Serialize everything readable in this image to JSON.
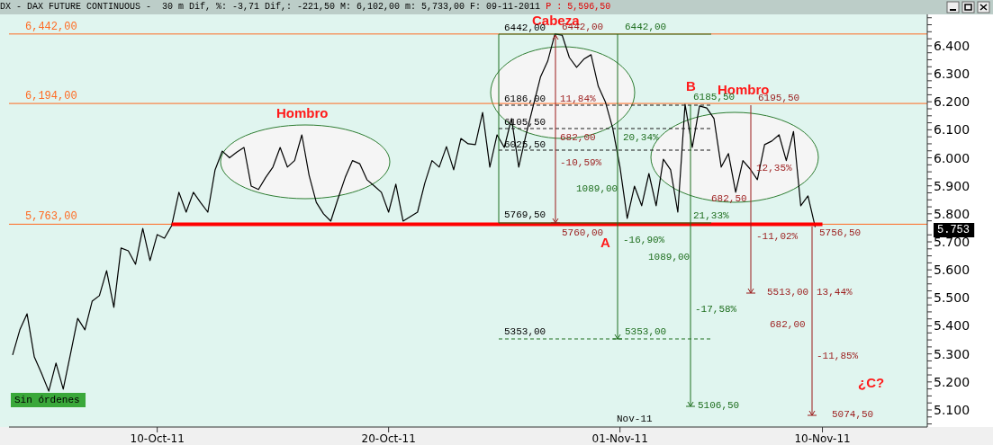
{
  "chart_data": {
    "type": "line",
    "title": "DX - DAX FUTURE CONTINUOUS -  30 m Dif, %: -3,71 Dif,: -221,50 M: 6,102,00 m: 5,733,00 F: 09-11-2011",
    "subtitle": "P : 5,596,50",
    "categories": [
      null,
      null,
      null,
      null,
      null,
      null,
      null,
      null,
      null,
      null,
      null,
      null,
      null,
      null,
      null,
      null,
      null,
      null,
      null,
      null,
      "10-Oct-11",
      null,
      null,
      null,
      null,
      null,
      null,
      null,
      null,
      null,
      null,
      null,
      null,
      null,
      null,
      null,
      null,
      null,
      null,
      null,
      null,
      null,
      null,
      null,
      null,
      null,
      null,
      null,
      null,
      null,
      null,
      null,
      "20-Oct-11",
      null,
      null,
      null,
      null,
      null,
      null,
      null,
      null,
      null,
      null,
      null,
      null,
      null,
      null,
      null,
      null,
      null,
      null,
      null,
      null,
      null,
      null,
      null,
      null,
      null,
      null,
      null,
      null,
      null,
      null,
      null,
      "01-Nov-11",
      null,
      null,
      null,
      null,
      null,
      null,
      null,
      null,
      null,
      null,
      null,
      null,
      null,
      null,
      null,
      null,
      null,
      null,
      null,
      null,
      null,
      null,
      null,
      null,
      null,
      null,
      null,
      "10-Nov-11",
      null,
      null,
      null,
      null,
      null,
      null,
      null,
      null,
      null,
      null,
      null,
      null,
      null,
      null
    ],
    "series": [
      {
        "color": "#000000",
        "values": [
          5296,
          5386,
          5443,
          5289,
          5231,
          5167,
          5267,
          5174,
          5299,
          5427,
          5386,
          5488,
          5508,
          5597,
          5466,
          5678,
          5668,
          5620,
          5748,
          5633,
          5726,
          5713,
          5758,
          5877,
          5806,
          5877,
          5840,
          5806,
          5957,
          6024,
          6000,
          6020,
          6037,
          5899,
          5887,
          5930,
          5967,
          6037,
          5967,
          5990,
          6082,
          5938,
          5841,
          5800,
          5774,
          5854,
          5930,
          5990,
          5979,
          5922,
          5900,
          5877,
          5806,
          5906,
          5774,
          5790,
          5806,
          5909,
          5990,
          5967,
          6040,
          5957,
          6069,
          6050,
          6047,
          6162,
          5967,
          6082,
          6037,
          6140,
          5967,
          6082,
          6185,
          6288,
          6345,
          6442,
          6438,
          6358,
          6323,
          6352,
          6368,
          6255,
          6198,
          6105,
          5967,
          5784,
          5899,
          5829,
          5944,
          5829,
          5995,
          5957,
          5806,
          6191,
          6037,
          6185,
          6178,
          6140,
          5967,
          6015,
          5877,
          5990,
          5960,
          5922,
          6047,
          6060,
          6082,
          5990,
          6094,
          5829,
          5864,
          5753,
          null,
          null,
          null,
          null,
          null,
          null,
          null,
          null,
          null,
          null,
          null,
          null,
          null,
          null,
          null
        ]
      },
      {
        "type": "line",
        "color": "#ff0000",
        "values": [
          null,
          null,
          null,
          null,
          null,
          null,
          null,
          null,
          null,
          null,
          null,
          null,
          null,
          null,
          null,
          null,
          null,
          null,
          null,
          null,
          null,
          null,
          5763,
          5763,
          5763,
          5763,
          5763,
          5763,
          5763,
          5763,
          5763,
          5763,
          5763,
          5763,
          5763,
          5763,
          5763,
          5763,
          5763,
          5763,
          5763,
          5763,
          5763,
          5763,
          5763,
          5763,
          5763,
          5763,
          5763,
          5763,
          5763,
          5763,
          5763,
          5763,
          5763,
          5763,
          5763,
          5763,
          5763,
          5763,
          5763,
          5763,
          5763,
          5763,
          5763,
          5763,
          5763,
          5763,
          5763,
          5763,
          5763,
          5763,
          5763,
          5763,
          5763,
          5763,
          5763,
          5763,
          5763,
          5763,
          5763,
          5763,
          5763,
          5763,
          5763,
          5763,
          5763,
          5763,
          5763,
          5763,
          5763,
          5763,
          5763,
          5763,
          5763,
          5763,
          5763,
          5763,
          5763,
          5763,
          5763,
          5763,
          5763,
          5763,
          5763,
          5763,
          5763,
          5763,
          5763,
          5763,
          5763,
          5763,
          5763,
          null,
          null,
          null,
          null,
          null,
          null,
          null,
          null,
          null,
          null,
          null,
          null,
          null,
          null
        ]
      }
    ],
    "ylim": [
      5039,
      6512
    ],
    "yticks": [
      {
        "value": 5050,
        "label": null
      },
      {
        "value": 5075,
        "label": null
      },
      {
        "value": 5100,
        "label": "5.100"
      },
      {
        "value": 5125,
        "label": null
      },
      {
        "value": 5150,
        "label": null
      },
      {
        "value": 5175,
        "label": null
      },
      {
        "value": 5200,
        "label": "5.200"
      },
      {
        "value": 5225,
        "label": null
      },
      {
        "value": 5250,
        "label": null
      },
      {
        "value": 5275,
        "label": null
      },
      {
        "value": 5300,
        "label": "5.300"
      },
      {
        "value": 5325,
        "label": null
      },
      {
        "value": 5350,
        "label": null
      },
      {
        "value": 5375,
        "label": null
      },
      {
        "value": 5400,
        "label": "5.400"
      },
      {
        "value": 5425,
        "label": null
      },
      {
        "value": 5450,
        "label": null
      },
      {
        "value": 5475,
        "label": null
      },
      {
        "value": 5500,
        "label": "5.500"
      },
      {
        "value": 5525,
        "label": null
      },
      {
        "value": 5550,
        "label": null
      },
      {
        "value": 5575,
        "label": null
      },
      {
        "value": 5600,
        "label": "5.600"
      },
      {
        "value": 5625,
        "label": null
      },
      {
        "value": 5650,
        "label": null
      },
      {
        "value": 5675,
        "label": null
      },
      {
        "value": 5700,
        "label": "5.700"
      },
      {
        "value": 5725,
        "label": null
      },
      {
        "value": 5775,
        "label": null
      },
      {
        "value": 5800,
        "label": "5.800"
      },
      {
        "value": 5825,
        "label": null
      },
      {
        "value": 5850,
        "label": null
      },
      {
        "value": 5875,
        "label": null
      },
      {
        "value": 5900,
        "label": "5.900"
      },
      {
        "value": 5925,
        "label": null
      },
      {
        "value": 5950,
        "label": null
      },
      {
        "value": 5975,
        "label": null
      },
      {
        "value": 6000,
        "label": "6.000"
      },
      {
        "value": 6025,
        "label": null
      },
      {
        "value": 6050,
        "label": null
      },
      {
        "value": 6075,
        "label": null
      },
      {
        "value": 6100,
        "label": "6.100"
      },
      {
        "value": 6125,
        "label": null
      },
      {
        "value": 6150,
        "label": null
      },
      {
        "value": 6175,
        "label": null
      },
      {
        "value": 6200,
        "label": "6.200"
      },
      {
        "value": 6225,
        "label": null
      },
      {
        "value": 6250,
        "label": null
      },
      {
        "value": 6275,
        "label": null
      },
      {
        "value": 6300,
        "label": "6.300"
      },
      {
        "value": 6325,
        "label": null
      },
      {
        "value": 6350,
        "label": null
      },
      {
        "value": 6375,
        "label": null
      },
      {
        "value": 6400,
        "label": "6.400"
      },
      {
        "value": 6425,
        "label": null
      },
      {
        "value": 6450,
        "label": null
      },
      {
        "value": 6475,
        "label": null
      },
      {
        "value": 6500,
        "label": null
      }
    ],
    "ref_lines": [
      {
        "axis": "y",
        "value": 6442,
        "label": "6,442,00",
        "color": "#ff6a21"
      },
      {
        "axis": "y",
        "value": 6194,
        "label": "6,194,00",
        "color": "#ff6a21"
      },
      {
        "axis": "y",
        "value": 5763,
        "label": "5,763,00",
        "color": "#ff6a21"
      }
    ],
    "annotations": [
      "Hombro",
      {
        "text": "Cabeza",
        "y": 6442
      },
      {
        "text": "Hombro",
        "y": 6194
      },
      "B",
      "A",
      "¿C?",
      "Sin órdenes",
      "Nov-11",
      {
        "text": "6442,00",
        "y": 6442
      },
      {
        "text": "6186,00",
        "y": 6186
      },
      {
        "text": "6105,50",
        "y": 6105.5
      },
      {
        "text": "6025,50",
        "y": 6025.5
      },
      {
        "text": "5769,50",
        "y": 5769.5
      },
      "5353,00",
      {
        "text": "6442,00",
        "y": 6442
      },
      "11,84%",
      "682,00",
      "-10,59%",
      {
        "text": "5760,00",
        "y": 5760
      },
      "6195,50",
      "12,35%",
      "682,50",
      "-11,02%",
      "5513,00",
      "5756,50",
      "13,44%",
      "682,00",
      "-11,85%",
      "5074,50",
      {
        "text": "6442,00",
        "y": 6442
      },
      {
        "text": "6185,50",
        "y": 6186
      },
      "20,34%",
      "1089,00",
      {
        "text": "21,33%",
        "y": 5763
      },
      "-16,90%",
      "1089,00",
      "-17,58%",
      "5353,00",
      "5106,50",
      "5.753"
    ]
  }
}
